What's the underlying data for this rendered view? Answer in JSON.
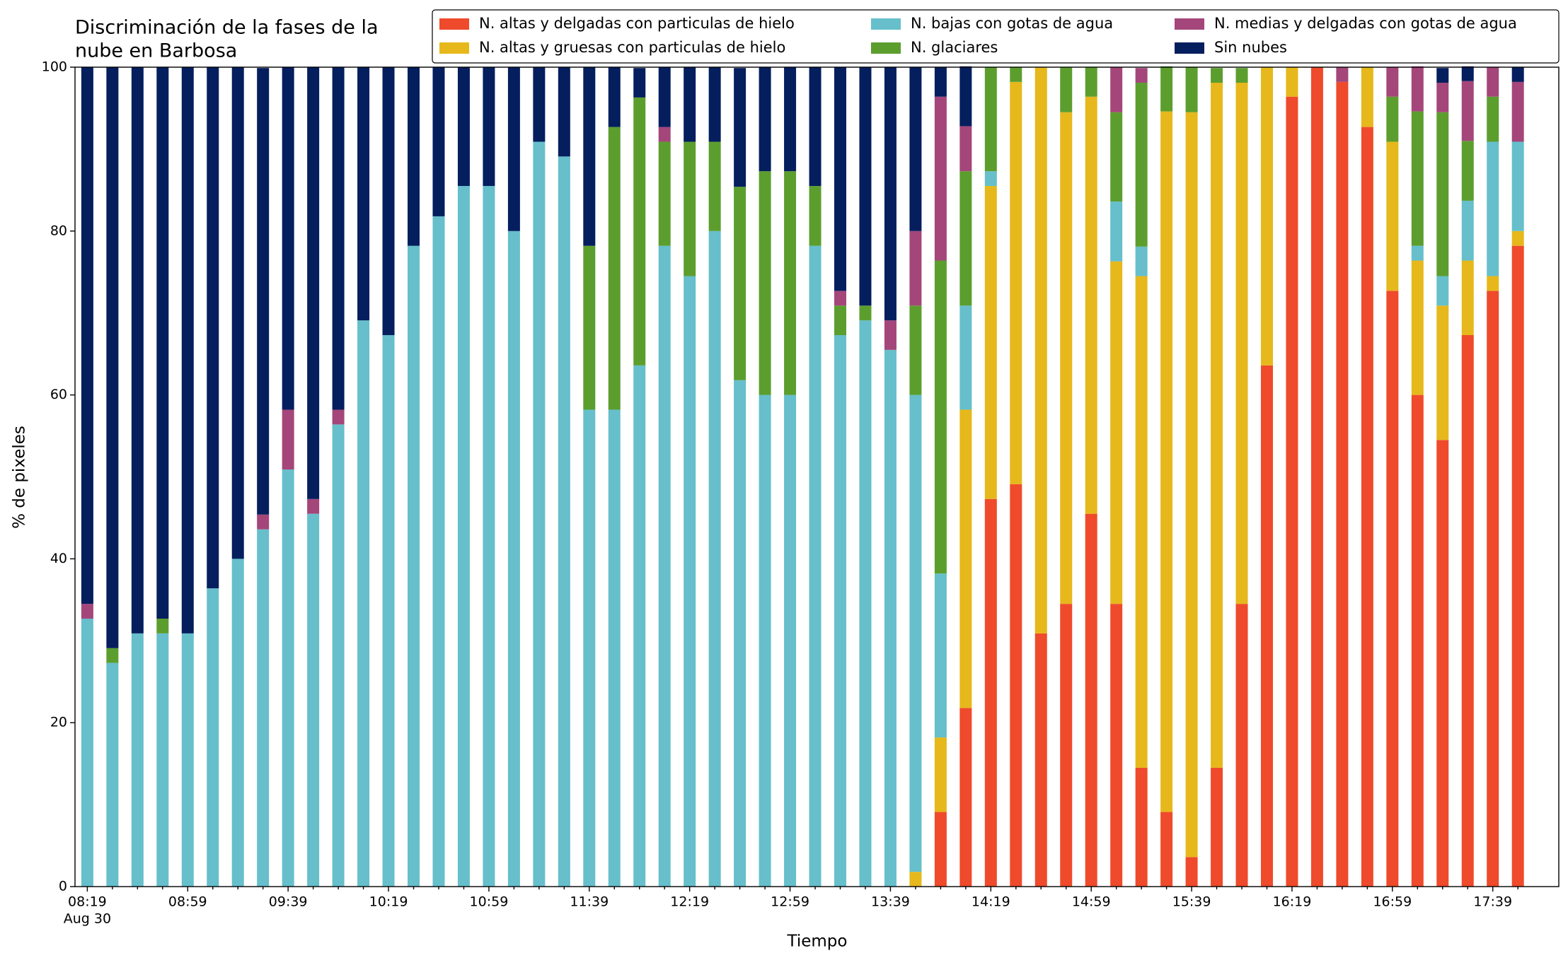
{
  "chart_data": {
    "type": "stacked_bar",
    "title": [
      "Discriminación de la fases de la",
      "nube en Barbosa"
    ],
    "xlabel": "Tiempo",
    "ylabel": "% de pixeles",
    "x_date_label": "Aug 30",
    "categories": [
      "08:19",
      null,
      null,
      null,
      "08:59",
      null,
      null,
      null,
      "09:39",
      null,
      null,
      null,
      "10:19",
      null,
      null,
      null,
      "10:59",
      null,
      null,
      null,
      "11:39",
      null,
      null,
      null,
      "12:19",
      null,
      null,
      null,
      "12:59",
      null,
      null,
      null,
      "13:39",
      null,
      null,
      null,
      "14:19",
      null,
      null,
      null,
      "14:59",
      null,
      null,
      null,
      "15:39",
      null,
      null,
      null,
      "16:19",
      null,
      null,
      null,
      "16:59",
      null,
      null,
      null,
      "17:39",
      null
    ],
    "ylim": [
      0,
      100
    ],
    "yticks": [
      0,
      20,
      40,
      60,
      80,
      100
    ],
    "legend": "top-right",
    "series": [
      {
        "name": "N. altas y delgadas con particulas de hielo",
        "color": "#ef4a2b",
        "values": [
          0,
          0,
          0,
          0,
          0,
          0,
          0,
          0,
          0,
          0,
          0,
          0,
          0,
          0,
          0,
          0,
          0,
          0,
          0,
          0,
          0,
          0,
          0,
          0,
          0,
          0,
          0,
          0,
          0,
          0,
          0,
          0,
          0,
          0,
          9.1,
          21.8,
          47.3,
          49.1,
          30.9,
          34.5,
          45.5,
          34.5,
          14.5,
          9.1,
          3.6,
          14.5,
          34.5,
          63.6,
          96.4,
          100,
          98.2,
          92.7,
          72.7,
          60,
          54.5,
          67.3,
          72.7,
          78.2
        ]
      },
      {
        "name": "N. altas y gruesas con particulas de hielo",
        "color": "#e6b81b",
        "values": [
          0,
          0,
          0,
          0,
          0,
          0,
          0,
          0,
          0,
          0,
          0,
          0,
          0,
          0,
          0,
          0,
          0,
          0,
          0,
          0,
          0,
          0,
          0,
          0,
          0,
          0,
          0,
          0,
          0,
          0,
          0,
          0,
          0,
          1.8,
          9.1,
          36.4,
          38.2,
          49.1,
          69.1,
          60,
          50.9,
          41.8,
          60,
          85.5,
          90.9,
          83.6,
          63.6,
          36.4,
          3.6,
          0,
          0,
          7.3,
          18.2,
          16.4,
          16.4,
          9.1,
          1.8,
          1.8
        ]
      },
      {
        "name": "N. bajas con gotas de agua",
        "color": "#66bfcb",
        "values": [
          32.7,
          27.3,
          30.9,
          30.9,
          30.9,
          36.4,
          40,
          43.6,
          50.9,
          45.5,
          56.4,
          69.1,
          67.3,
          78.2,
          81.8,
          85.5,
          85.5,
          80,
          90.9,
          89.1,
          58.2,
          58.2,
          63.6,
          78.2,
          74.5,
          80,
          61.8,
          60,
          60,
          78.2,
          67.3,
          69.1,
          65.5,
          58.2,
          20,
          12.7,
          1.8,
          0,
          0,
          0,
          0,
          7.3,
          3.6,
          0,
          0,
          0,
          0,
          0,
          0,
          0,
          0,
          0,
          0,
          1.8,
          3.6,
          7.3,
          16.4,
          10.9
        ]
      },
      {
        "name": "N. glaciares",
        "color": "#5c9e2e",
        "values": [
          0,
          1.8,
          0,
          1.8,
          0,
          0,
          0,
          0,
          0,
          0,
          0,
          0,
          0,
          0,
          0,
          0,
          0,
          0,
          0,
          0,
          20,
          34.5,
          32.7,
          12.7,
          16.4,
          10.9,
          23.6,
          27.3,
          27.3,
          7.3,
          3.6,
          1.8,
          0,
          10.9,
          38.2,
          16.4,
          12.7,
          1.8,
          0,
          5.5,
          3.6,
          10.9,
          20,
          5.5,
          5.5,
          1.8,
          1.8,
          0,
          0,
          0,
          0,
          0,
          5.5,
          16.4,
          20,
          7.3,
          5.5,
          0
        ]
      },
      {
        "name": "N. medias y delgadas con gotas de agua",
        "color": "#a4467a",
        "values": [
          1.8,
          0,
          0,
          0,
          0,
          0,
          0,
          1.8,
          7.3,
          1.8,
          1.8,
          0,
          0,
          0,
          0,
          0,
          0,
          0,
          0,
          0,
          0,
          0,
          0,
          1.8,
          0,
          0,
          0,
          0,
          0,
          0,
          1.8,
          0,
          3.6,
          9.1,
          20,
          5.5,
          0,
          0,
          0,
          0,
          0,
          5.5,
          1.8,
          0,
          0,
          0,
          0,
          0,
          0,
          0,
          1.8,
          0,
          3.6,
          5.5,
          3.6,
          7.3,
          3.6,
          7.3
        ]
      },
      {
        "name": "Sin nubes",
        "color": "#041e5e",
        "values": [
          65.5,
          70.9,
          69.1,
          67.3,
          69.1,
          63.6,
          60,
          54.5,
          41.8,
          52.7,
          41.8,
          30.9,
          32.7,
          21.8,
          18.2,
          14.5,
          14.5,
          20,
          9.1,
          10.9,
          21.8,
          7.3,
          3.6,
          7.3,
          9.1,
          9.1,
          14.5,
          12.7,
          12.7,
          14.5,
          27.3,
          29.1,
          30.9,
          20,
          3.6,
          7.3,
          0,
          0,
          0,
          0,
          0,
          0,
          0,
          0,
          0,
          0,
          0,
          0,
          0,
          0,
          0,
          0,
          0,
          0,
          1.8,
          1.8,
          0,
          1.8
        ]
      }
    ]
  }
}
